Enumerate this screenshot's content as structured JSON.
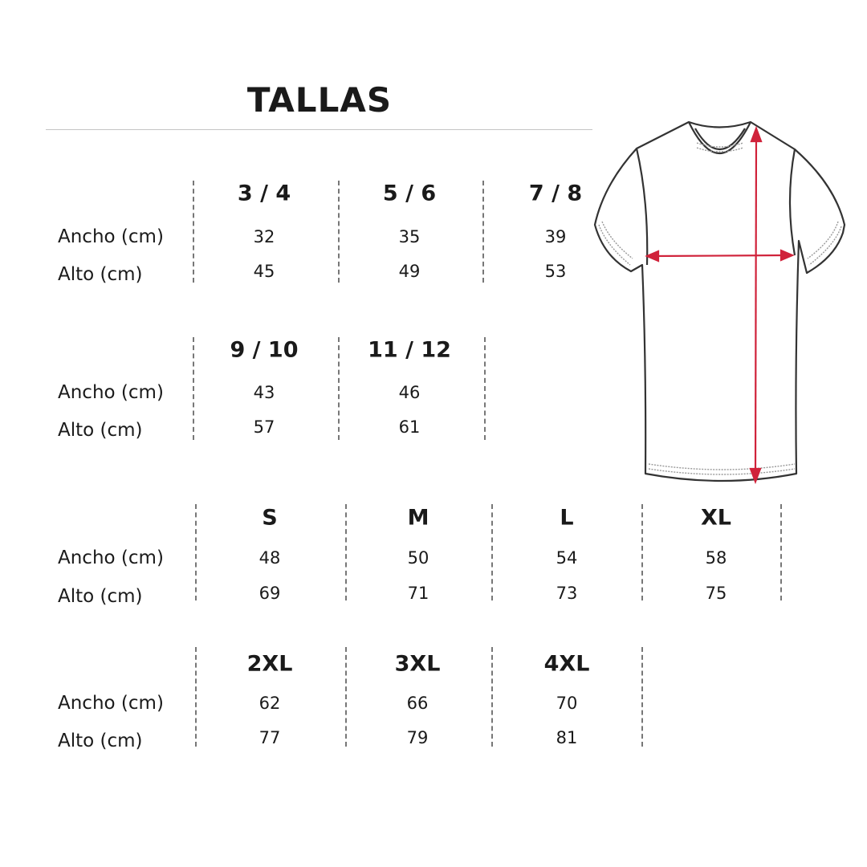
{
  "title": "TALLAS",
  "row_labels": {
    "ancho": "Ancho (cm)",
    "alto": "Alto (cm)"
  },
  "groups": [
    {
      "sizes": [
        {
          "label": "3 / 4",
          "ancho": "32",
          "alto": "45"
        },
        {
          "label": "5 / 6",
          "ancho": "35",
          "alto": "49"
        },
        {
          "label": "7 / 8",
          "ancho": "39",
          "alto": "53"
        }
      ]
    },
    {
      "sizes": [
        {
          "label": "9 / 10",
          "ancho": "43",
          "alto": "57"
        },
        {
          "label": "11 / 12",
          "ancho": "46",
          "alto": "61"
        }
      ]
    },
    {
      "sizes": [
        {
          "label": "S",
          "ancho": "48",
          "alto": "69"
        },
        {
          "label": "M",
          "ancho": "50",
          "alto": "71"
        },
        {
          "label": "L",
          "ancho": "54",
          "alto": "73"
        },
        {
          "label": "XL",
          "ancho": "58",
          "alto": "75"
        }
      ]
    },
    {
      "sizes": [
        {
          "label": "2XL",
          "ancho": "62",
          "alto": "77"
        },
        {
          "label": "3XL",
          "ancho": "66",
          "alto": "79"
        },
        {
          "label": "4XL",
          "ancho": "70",
          "alto": "81"
        }
      ]
    }
  ],
  "colors": {
    "measure_arrow": "#d0223a",
    "shirt_outline": "#333333"
  },
  "icons": {
    "illustration": "tshirt-measurement-diagram"
  }
}
